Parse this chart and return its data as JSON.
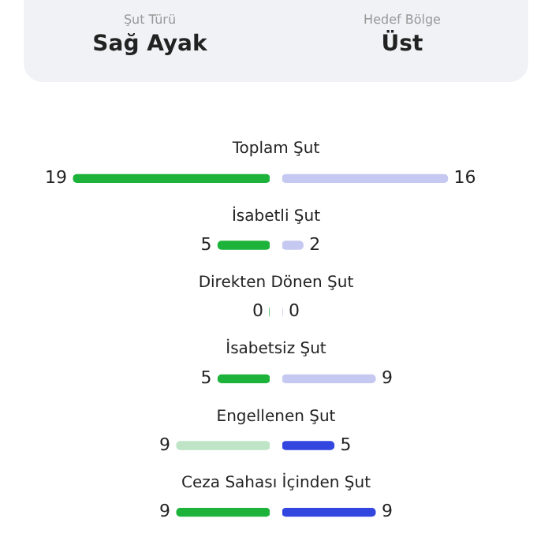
{
  "chart_data": [
    {
      "type": "bar",
      "orientation": "horizontal",
      "categories": [
        "Toplam Şut",
        "İsabetli Şut",
        "Direkten Dönen Şut",
        "İsabetsiz Şut",
        "Engellenen Şut",
        "Ceza Sahası İçinden Şut"
      ],
      "values": [
        19,
        5,
        0,
        5,
        9,
        9
      ],
      "colors": [
        "#1db33a",
        "#1db33a",
        "#1db33a",
        "#1db33a",
        "#bfe4c6",
        "#1db33a"
      ],
      "tick_labels": false,
      "grid": false,
      "data_labels": true,
      "annotations": [
        "Şut Türü",
        "Sağ Ayak",
        "Hedef Bölge",
        "Üst"
      ]
    },
    {
      "type": "bar",
      "orientation": "horizontal",
      "categories": [
        null,
        null,
        null,
        null,
        null,
        null
      ],
      "values": [
        16,
        2,
        0,
        9,
        5,
        9
      ],
      "colors": [
        "#c5c8f0",
        "#c5c8f0",
        "#c5c8f0",
        "#c5c8f0",
        "#3346e0",
        "#3346e0"
      ],
      "tick_labels": false,
      "grid": false,
      "data_labels": true
    }
  ]
}
